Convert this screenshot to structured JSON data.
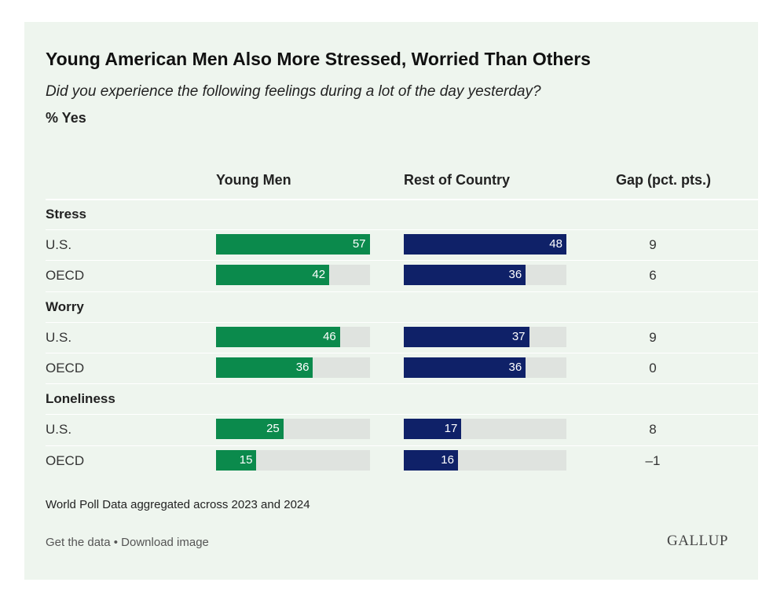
{
  "title": "Young American Men Also More Stressed, Worried Than Others",
  "subtitle": "Did you experience the following feelings during a lot of the day yesterday?",
  "unit_label": "% Yes",
  "columns": {
    "young_men": "Young Men",
    "rest": "Rest of Country",
    "gap": "Gap (pct. pts.)"
  },
  "colors": {
    "young_men": "#0b8a4c",
    "rest": "#0f2168",
    "track": "#dfe3df",
    "background": "#eef5ee"
  },
  "chart_data": {
    "type": "bar",
    "orientation": "horizontal",
    "xlim": [
      0,
      100
    ],
    "groups": [
      {
        "name": "Stress",
        "rows": [
          {
            "label": "U.S.",
            "young_men": 57,
            "rest": 48,
            "gap": "9"
          },
          {
            "label": "OECD",
            "young_men": 42,
            "rest": 36,
            "gap": "6"
          }
        ]
      },
      {
        "name": "Worry",
        "rows": [
          {
            "label": "U.S.",
            "young_men": 46,
            "rest": 37,
            "gap": "9"
          },
          {
            "label": "OECD",
            "young_men": 36,
            "rest": 36,
            "gap": "0"
          }
        ]
      },
      {
        "name": "Loneliness",
        "rows": [
          {
            "label": "U.S.",
            "young_men": 25,
            "rest": 17,
            "gap": "8"
          },
          {
            "label": "OECD",
            "young_men": 15,
            "rest": 16,
            "gap": "–1"
          }
        ]
      }
    ]
  },
  "footnote": "World Poll Data aggregated across 2023 and 2024",
  "links": {
    "get_data": "Get the data",
    "separator": "•",
    "download": "Download image"
  },
  "logo_text": "GALLUP"
}
